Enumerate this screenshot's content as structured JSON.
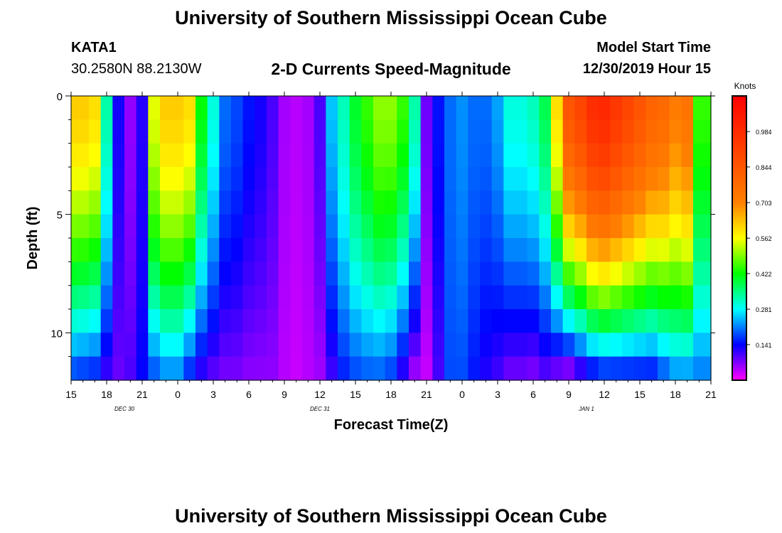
{
  "header": {
    "title": "University of Southern Mississippi Ocean Cube",
    "station": "KATA1",
    "coords": "30.2580N 88.2130W",
    "subtitle": "2-D Currents Speed-Magnitude",
    "model_label": "Model Start Time",
    "model_time": "12/30/2019 Hour 15"
  },
  "footer": {
    "title": "University of Southern Mississippi Ocean Cube"
  },
  "chart_data": {
    "type": "heatmap",
    "title": "2-D Currents Speed-Magnitude",
    "xlabel": "Forecast Time(Z)",
    "ylabel": "Depth (ft)",
    "x_ticks": [
      "15",
      "18",
      "21",
      "0",
      "3",
      "6",
      "9",
      "12",
      "15",
      "18",
      "21",
      "0",
      "3",
      "6",
      "9",
      "12",
      "15",
      "18",
      "21"
    ],
    "date_labels": [
      {
        "text": "DEC 30",
        "at_tick": 1.5
      },
      {
        "text": "DEC 31",
        "at_tick": 7
      },
      {
        "text": "JAN 1",
        "at_tick": 14.5
      }
    ],
    "y_ticks": [
      0,
      5,
      10
    ],
    "ylim": [
      0,
      12
    ],
    "xlim_hours": [
      0,
      54
    ],
    "colorbar": {
      "unit": "Knots",
      "ticks": [
        "0.984",
        "0.844",
        "0.703",
        "0.562",
        "0.422",
        "0.281",
        "0.141"
      ],
      "tick_values": [
        0.984,
        0.844,
        0.703,
        0.562,
        0.422,
        0.281,
        0.141
      ],
      "range": [
        0,
        1.125
      ]
    },
    "depth_rows": [
      0.5,
      1.5,
      2.5,
      3.5,
      4.5,
      5.5,
      6.5,
      7.5,
      8.5,
      9.5,
      10.5,
      11.5
    ],
    "hour_columns": [
      0,
      1,
      2,
      3,
      4,
      5,
      6,
      7,
      8,
      9,
      10,
      11,
      12,
      13,
      14,
      15,
      16,
      17,
      18,
      19,
      20,
      21,
      22,
      23,
      24,
      25,
      26,
      27,
      28,
      29,
      30,
      31,
      32,
      33,
      34,
      35,
      36,
      37,
      38,
      39,
      40,
      41,
      42,
      43,
      44,
      45,
      46,
      47,
      48,
      49,
      50,
      51,
      52,
      53,
      54
    ],
    "surface_speed_knots": [
      0.62,
      0.62,
      0.6,
      0.33,
      0.13,
      0.06,
      0.12,
      0.55,
      0.62,
      0.62,
      0.6,
      0.42,
      0.3,
      0.2,
      0.18,
      0.15,
      0.13,
      0.1,
      0.05,
      0.04,
      0.05,
      0.1,
      0.25,
      0.32,
      0.4,
      0.45,
      0.5,
      0.5,
      0.45,
      0.33,
      0.08,
      0.15,
      0.2,
      0.22,
      0.2,
      0.2,
      0.23,
      0.3,
      0.3,
      0.32,
      0.38,
      0.6,
      0.85,
      0.9,
      0.98,
      1.0,
      0.95,
      0.9,
      0.85,
      0.8,
      0.78,
      0.72,
      0.75,
      0.45,
      0.45
    ],
    "bottom_speed_knots": [
      0.16,
      0.15,
      0.14,
      0.1,
      0.08,
      0.1,
      0.14,
      0.17,
      0.2,
      0.2,
      0.14,
      0.1,
      0.08,
      0.07,
      0.07,
      0.06,
      0.06,
      0.06,
      0.04,
      0.03,
      0.04,
      0.05,
      0.1,
      0.15,
      0.17,
      0.18,
      0.18,
      0.16,
      0.1,
      0.04,
      0.03,
      0.1,
      0.18,
      0.18,
      0.15,
      0.12,
      0.1,
      0.07,
      0.07,
      0.06,
      0.08,
      0.05,
      0.02,
      0.06,
      0.1,
      0.12,
      0.12,
      0.12,
      0.12,
      0.12,
      0.16,
      0.2,
      0.2,
      0.2,
      0.2
    ]
  }
}
